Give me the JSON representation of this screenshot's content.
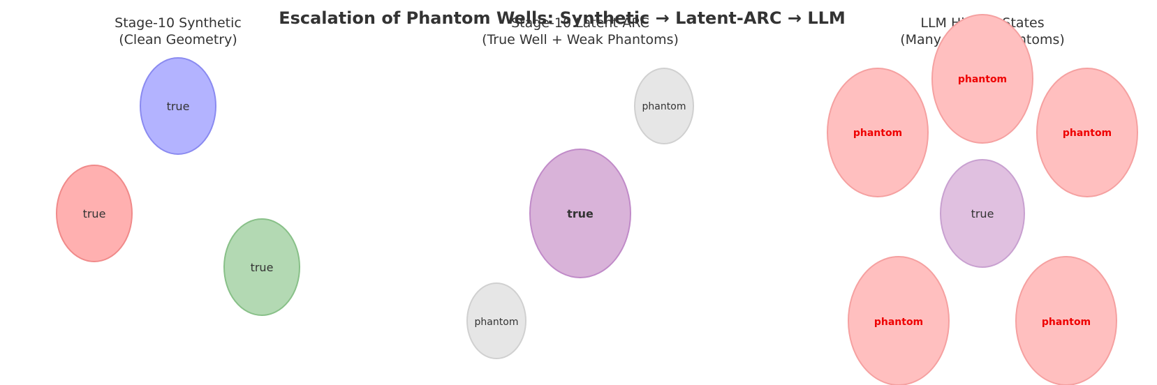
{
  "title": "Escalation of Phantom Wells: Synthetic → Latent-ARC → LLM",
  "colors": {
    "blue": "#b3b3ff",
    "blue_stroke": "#8a8af0",
    "red": "#ffb0b0",
    "red_stroke": "#f08a8a",
    "green": "#b3d9b3",
    "green_stroke": "#88c088",
    "purple": "#d9b3d9",
    "purple_stroke": "#c08ac8",
    "lilac": "#e0c0e0",
    "lilac_stroke": "#c8a0d0",
    "gray": "#e6e6e6",
    "gray_stroke": "#d0d0d0",
    "pink": "#ffbfbf",
    "pink_stroke": "#f5a0a0"
  },
  "panels": [
    {
      "title_line1": "Stage-10 Synthetic",
      "title_line2": "(Clean Geometry)",
      "wells": [
        {
          "label": "true",
          "color": "blue"
        },
        {
          "label": "true",
          "color": "red"
        },
        {
          "label": "true",
          "color": "green"
        }
      ]
    },
    {
      "title_line1": "Stage-10 Latent-ARC",
      "title_line2": "(True Well + Weak Phantoms)",
      "wells": [
        {
          "label": "phantom",
          "color": "gray"
        },
        {
          "label": "true",
          "color": "purple"
        },
        {
          "label": "phantom",
          "color": "gray"
        }
      ]
    },
    {
      "title_line1": "LLM Hidden States",
      "title_line2": "(Many Strong Phantoms)",
      "wells": [
        {
          "label": "phantom",
          "color": "pink"
        },
        {
          "label": "phantom",
          "color": "pink"
        },
        {
          "label": "phantom",
          "color": "pink"
        },
        {
          "label": "true",
          "color": "lilac"
        },
        {
          "label": "phantom",
          "color": "pink"
        },
        {
          "label": "phantom",
          "color": "pink"
        }
      ]
    }
  ]
}
